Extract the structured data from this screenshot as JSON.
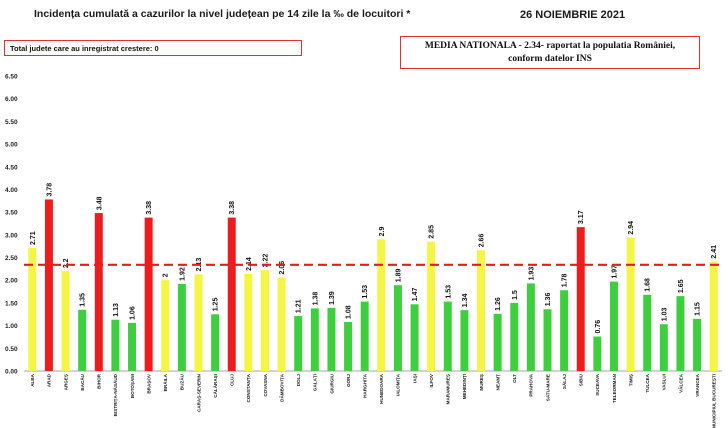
{
  "header": {
    "title": "Incidența cumulată a cazurilor la nivel județean pe 14 zile la ‰ de locuitori *",
    "date": "26 NOIEMBRIE 2021"
  },
  "notes": {
    "left": "Total judete care au inregistrat crestere: 0",
    "right_line1": "MEDIA NATIONALA - 2.34-  raportat la populatia României,",
    "right_line2": "conform datelor INS"
  },
  "colors": {
    "red": "#ee1c1c",
    "yellow": "#f5f544",
    "green": "#3ecf3e",
    "reference": "#e02020"
  },
  "chart_data": {
    "type": "bar",
    "title": "Incidența cumulată a cazurilor la nivel județean pe 14 zile la ‰ de locuitori *",
    "xlabel": "",
    "ylabel": "",
    "ylim": [
      0,
      6.5
    ],
    "yticks": [
      "0.00",
      "0.50",
      "1.00",
      "1.50",
      "2.00",
      "2.50",
      "3.00",
      "3.50",
      "4.00",
      "4.50",
      "5.00",
      "5.50",
      "6.00",
      "6.50"
    ],
    "reference_line": {
      "value": 2.34,
      "style": "dashed"
    },
    "grid": false,
    "categories": [
      "ALBA",
      "ARAD",
      "ARGEȘ",
      "BACĂU",
      "BIHOR",
      "BISTRIȚA-NĂSĂUD",
      "BOTOȘANI",
      "BRAȘOV",
      "BRĂILA",
      "BUZĂU",
      "CARAȘ-SEVERIN",
      "CĂLĂRAȘI",
      "CLUJ",
      "CONSTANȚA",
      "COVASNA",
      "DÂMBOVIȚA",
      "DOLJ",
      "GALAȚI",
      "GIURGIU",
      "GORJ",
      "HARGHITA",
      "HUNEDOARA",
      "IALOMIȚA",
      "IAȘI",
      "ILFOV",
      "MARAMUREȘ",
      "MEHEDINȚI",
      "MUREȘ",
      "NEAMȚ",
      "OLT",
      "PRAHOVA",
      "SATU-MARE",
      "SĂLAJ",
      "SIBIU",
      "SUCEAVA",
      "TELEORMAN",
      "TIMIȘ",
      "TULCEA",
      "VASLUI",
      "VÂLCEA",
      "VRANCEA",
      "MUNICIPIUL BUCUREȘTI"
    ],
    "values": [
      2.71,
      3.78,
      2.2,
      1.35,
      3.48,
      1.13,
      1.06,
      3.38,
      2,
      1.92,
      2.13,
      1.25,
      3.38,
      2.14,
      2.22,
      2.06,
      1.21,
      1.38,
      1.39,
      1.08,
      1.53,
      2.9,
      1.89,
      1.47,
      2.85,
      1.53,
      1.34,
      2.66,
      1.26,
      1.5,
      1.93,
      1.36,
      1.78,
      3.17,
      0.76,
      1.97,
      2.94,
      1.68,
      1.03,
      1.65,
      1.15,
      2.41
    ],
    "value_labels": [
      "2.71",
      "3.78",
      "2.2",
      "1.35",
      "3.48",
      "1.13",
      "1.06",
      "3.38",
      "2",
      "1.92",
      "2.13",
      "1.25",
      "3.38",
      "2.14",
      "2.22",
      "2.06",
      "1.21",
      "1.38",
      "1.39",
      "1.08",
      "1.53",
      "2.9",
      "1.89",
      "1.47",
      "2.85",
      "1.53",
      "1.34",
      "2.66",
      "1.26",
      "1.5",
      "1.93",
      "1.36",
      "1.78",
      "3.17",
      "0.76",
      "1.97",
      "2.94",
      "1.68",
      "1.03",
      "1.65",
      "1.15",
      "2.41"
    ],
    "bar_colors": [
      "yellow",
      "red",
      "yellow",
      "green",
      "red",
      "green",
      "green",
      "red",
      "yellow",
      "green",
      "yellow",
      "green",
      "red",
      "yellow",
      "yellow",
      "yellow",
      "green",
      "green",
      "green",
      "green",
      "green",
      "yellow",
      "green",
      "green",
      "yellow",
      "green",
      "green",
      "yellow",
      "green",
      "green",
      "green",
      "green",
      "green",
      "red",
      "green",
      "green",
      "yellow",
      "green",
      "green",
      "green",
      "green",
      "yellow"
    ]
  }
}
